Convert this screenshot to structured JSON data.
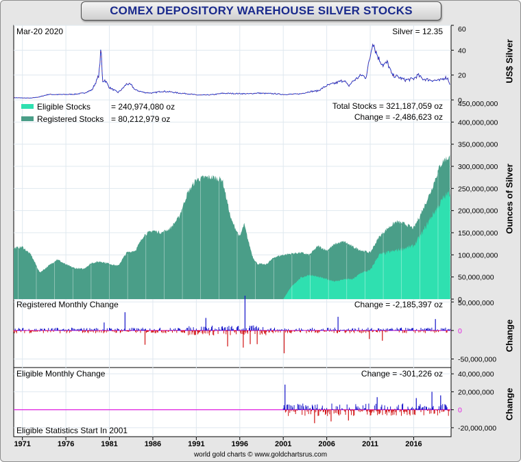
{
  "title": "COMEX DEPOSITORY WAREHOUSE SILVER STOCKS",
  "credit": "world gold charts © www.goldchartsrus.com",
  "colors": {
    "eligible": "#2fe0b0",
    "registered": "#4a9e88",
    "price_line": "#1f35c8",
    "price_accent": "#d42020",
    "positive_bar": "#1010c8",
    "negative_bar": "#d01010",
    "zero_line": "#e020e0"
  },
  "x_axis": {
    "tick_labels": [
      "1971",
      "1976",
      "1981",
      "1986",
      "1991",
      "1996",
      "2001",
      "2006",
      "2011",
      "2016"
    ]
  },
  "chart_data": [
    {
      "type": "line",
      "panel": "silver-price",
      "header_left": "Mar-20  2020",
      "header_right": "Silver = 12.35",
      "ylabel": "US$ Silver",
      "ylim": [
        0,
        60
      ],
      "y_ticks": [
        "0",
        "20",
        "40",
        "60"
      ],
      "series": [
        {
          "x": [
            1970.0,
            1971.0,
            1972.0,
            1973.0,
            1974.0,
            1975.0,
            1976.0,
            1977.0,
            1978.0,
            1979.0,
            1979.5,
            1979.8,
            1980.05,
            1980.2,
            1980.5,
            1981.0,
            1981.5,
            1982.0,
            1982.5,
            1983.0,
            1983.5,
            1984.0,
            1985.0,
            1986.0,
            1987.0,
            1988.0,
            1989.0,
            1990.0,
            1991.0,
            1992.0,
            1993.0,
            1994.0,
            1995.0,
            1996.0,
            1997.0,
            1998.0,
            1999.0,
            2000.0,
            2001.0,
            2002.0,
            2003.0,
            2004.0,
            2005.0,
            2006.0,
            2007.0,
            2008.0,
            2008.5,
            2009.0,
            2010.0,
            2010.5,
            2011.0,
            2011.3,
            2011.6,
            2012.0,
            2012.5,
            2013.0,
            2013.5,
            2014.0,
            2015.0,
            2016.0,
            2016.5,
            2017.0,
            2018.0,
            2019.0,
            2019.6,
            2019.9,
            2020.2
          ],
          "values": [
            1.8,
            1.6,
            1.5,
            2.5,
            4.5,
            4.3,
            4.4,
            4.6,
            5.4,
            8.0,
            15.0,
            20.0,
            42.0,
            15.0,
            16.0,
            10.0,
            8.0,
            6.0,
            9.0,
            13.0,
            12.0,
            8.0,
            6.0,
            5.5,
            7.0,
            6.5,
            5.5,
            5.0,
            4.0,
            3.9,
            4.3,
            5.3,
            5.2,
            5.1,
            4.9,
            5.5,
            5.2,
            5.0,
            4.4,
            4.6,
            4.9,
            6.7,
            7.3,
            11.5,
            13.5,
            16.0,
            11.0,
            15.0,
            20.0,
            18.0,
            35.0,
            48.0,
            40.0,
            33.0,
            28.0,
            30.0,
            20.0,
            19.0,
            16.0,
            17.0,
            20.0,
            17.0,
            16.0,
            15.5,
            18.0,
            17.5,
            12.35
          ]
        }
      ]
    },
    {
      "type": "area",
      "panel": "stocks",
      "legend": [
        {
          "name": "Eligible Stocks",
          "value": "= 240,974,080 oz"
        },
        {
          "name": "Registered Stocks",
          "value": "= 80,212,979 oz"
        }
      ],
      "header_right_1": "Total Stocks = 321,187,059 oz",
      "header_right_2": "Change = -2,486,623 oz",
      "ylabel": "Ounces of Silver",
      "ylim": [
        0,
        450000000
      ],
      "y_ticks": [
        "0",
        "50,000,000",
        "100,000,000",
        "150,000,000",
        "200,000,000",
        "250,000,000",
        "300,000,000",
        "350,000,000",
        "400,000,000",
        "450,000,000"
      ],
      "total": {
        "x": [
          1970.0,
          1971.0,
          1972.0,
          1973.0,
          1974.0,
          1975.0,
          1976.0,
          1977.0,
          1978.0,
          1979.0,
          1980.0,
          1981.0,
          1982.0,
          1983.0,
          1984.0,
          1985.0,
          1986.0,
          1987.0,
          1988.0,
          1989.0,
          1990.0,
          1991.0,
          1992.0,
          1993.0,
          1994.0,
          1995.0,
          1995.5,
          1996.0,
          1996.5,
          1997.0,
          1997.5,
          1998.0,
          1999.0,
          2000.0,
          2001.0,
          2002.0,
          2003.0,
          2004.0,
          2005.0,
          2006.0,
          2007.0,
          2008.0,
          2009.0,
          2010.0,
          2011.0,
          2012.0,
          2013.0,
          2014.0,
          2015.0,
          2016.0,
          2017.0,
          2018.0,
          2019.0,
          2019.5,
          2020.2
        ],
        "values": [
          115000000,
          118000000,
          100000000,
          60000000,
          75000000,
          90000000,
          78000000,
          70000000,
          68000000,
          82000000,
          85000000,
          80000000,
          75000000,
          105000000,
          110000000,
          145000000,
          155000000,
          150000000,
          160000000,
          185000000,
          240000000,
          270000000,
          275000000,
          275000000,
          270000000,
          180000000,
          160000000,
          140000000,
          170000000,
          130000000,
          95000000,
          80000000,
          78000000,
          95000000,
          100000000,
          103000000,
          105000000,
          100000000,
          120000000,
          110000000,
          125000000,
          130000000,
          118000000,
          110000000,
          105000000,
          140000000,
          160000000,
          175000000,
          170000000,
          160000000,
          200000000,
          245000000,
          300000000,
          315000000,
          321187059
        ]
      },
      "eligible": {
        "x": [
          2001.0,
          2002.0,
          2003.0,
          2004.0,
          2005.0,
          2006.0,
          2007.0,
          2008.0,
          2009.0,
          2010.0,
          2011.0,
          2012.0,
          2013.0,
          2014.0,
          2015.0,
          2016.0,
          2017.0,
          2018.0,
          2019.0,
          2019.5,
          2020.2
        ],
        "values": [
          0,
          30000000,
          48000000,
          55000000,
          50000000,
          45000000,
          40000000,
          45000000,
          45000000,
          60000000,
          65000000,
          100000000,
          105000000,
          110000000,
          115000000,
          120000000,
          150000000,
          185000000,
          215000000,
          230000000,
          240974080
        ]
      }
    },
    {
      "type": "bar",
      "panel": "registered-change",
      "header_left": "Registered Monthly Change",
      "header_right": "Change = -2,185,397 oz",
      "ylabel": "Change",
      "ylim": [
        -65000000,
        55000000
      ],
      "y_ticks": [
        "50,000,000",
        "0",
        "-50,000,000"
      ],
      "x_range": [
        1970.0,
        2020.2
      ],
      "spikes": {
        "x": [
          1980.4,
          1982.8,
          1985.1,
          1992.1,
          1994.6,
          1996.4,
          1996.6,
          1997.2,
          1998.0,
          2001.1,
          2007.3,
          2010.9,
          2012.4,
          2018.5
        ],
        "values": [
          14000000,
          32000000,
          -25000000,
          22000000,
          -28000000,
          -30000000,
          61000000,
          -24000000,
          -24000000,
          -40000000,
          24000000,
          -15000000,
          -18000000,
          20000000
        ]
      }
    },
    {
      "type": "bar",
      "panel": "eligible-change",
      "header_left": "Eligible Monthly Change",
      "header_right": "Change = -301,226 oz",
      "footer_left": "Eligible Statistics Start In 2001",
      "ylabel": "Change",
      "ylim": [
        -30000000,
        47000000
      ],
      "y_ticks": [
        "40,000,000",
        "20,000,000",
        "0",
        "-20,000,000"
      ],
      "x_range": [
        2001.0,
        2020.2
      ],
      "spikes": {
        "x": [
          2001.2,
          2004.6,
          2006.5,
          2008.5,
          2011.8,
          2016.3,
          2018.1,
          2019.1
        ],
        "values": [
          28000000,
          -15000000,
          -13000000,
          -12000000,
          14000000,
          13000000,
          20000000,
          16000000
        ]
      }
    }
  ]
}
